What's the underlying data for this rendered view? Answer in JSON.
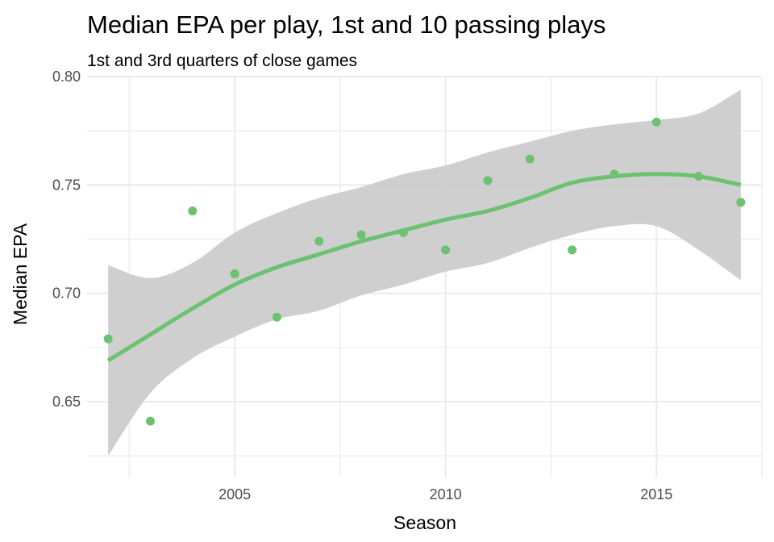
{
  "chart_data": {
    "type": "scatter",
    "title": "Median EPA per play, 1st and 10 passing plays",
    "subtitle": "1st and 3rd quarters of close games",
    "xlabel": "Season",
    "ylabel": "Median EPA",
    "xlim": [
      2001.5,
      2017.5
    ],
    "ylim": [
      0.615,
      0.8
    ],
    "x_ticks": [
      2005,
      2010,
      2015
    ],
    "x_tick_labels": [
      "2005",
      "2010",
      "2015"
    ],
    "y_ticks": [
      0.65,
      0.7,
      0.75,
      0.8
    ],
    "y_tick_labels": [
      "0.65",
      "0.70",
      "0.75",
      "0.80"
    ],
    "grid": true,
    "point_color": "#6cc270",
    "smooth_color": "#6cc270",
    "band_color": "#cccccc",
    "points": [
      {
        "x": 2002,
        "y": 0.679
      },
      {
        "x": 2003,
        "y": 0.641
      },
      {
        "x": 2004,
        "y": 0.738
      },
      {
        "x": 2005,
        "y": 0.709
      },
      {
        "x": 2006,
        "y": 0.689
      },
      {
        "x": 2007,
        "y": 0.724
      },
      {
        "x": 2008,
        "y": 0.727
      },
      {
        "x": 2009,
        "y": 0.728
      },
      {
        "x": 2010,
        "y": 0.72
      },
      {
        "x": 2011,
        "y": 0.752
      },
      {
        "x": 2012,
        "y": 0.762
      },
      {
        "x": 2013,
        "y": 0.72
      },
      {
        "x": 2014,
        "y": 0.755
      },
      {
        "x": 2015,
        "y": 0.779
      },
      {
        "x": 2016,
        "y": 0.754
      },
      {
        "x": 2017,
        "y": 0.742
      }
    ],
    "smooth": {
      "x": [
        2002,
        2003,
        2004,
        2005,
        2006,
        2007,
        2008,
        2009,
        2010,
        2011,
        2012,
        2013,
        2014,
        2015,
        2016,
        2017
      ],
      "fit": [
        0.669,
        0.681,
        0.693,
        0.704,
        0.712,
        0.718,
        0.724,
        0.729,
        0.734,
        0.738,
        0.744,
        0.751,
        0.754,
        0.755,
        0.754,
        0.75
      ],
      "lower": [
        0.625,
        0.654,
        0.67,
        0.68,
        0.688,
        0.692,
        0.699,
        0.704,
        0.71,
        0.714,
        0.721,
        0.727,
        0.731,
        0.731,
        0.72,
        0.706
      ],
      "upper": [
        0.713,
        0.707,
        0.714,
        0.728,
        0.737,
        0.744,
        0.749,
        0.755,
        0.759,
        0.765,
        0.77,
        0.775,
        0.778,
        0.78,
        0.783,
        0.794
      ]
    }
  }
}
